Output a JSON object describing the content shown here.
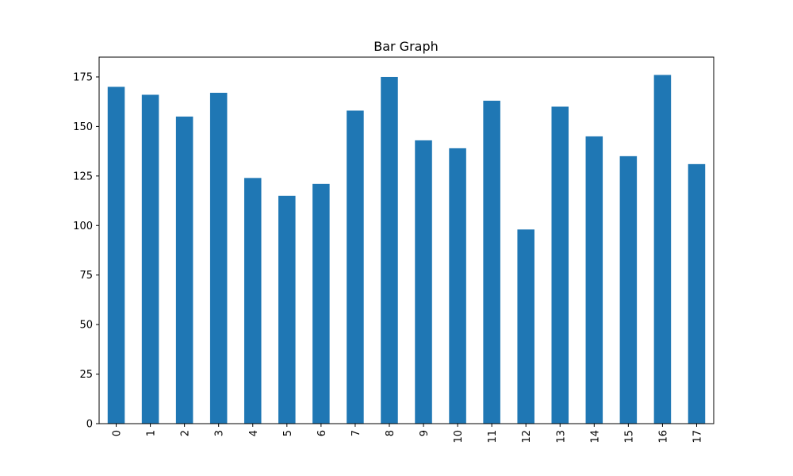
{
  "chart_data": {
    "type": "bar",
    "title": "Bar Graph",
    "xlabel": "",
    "ylabel": "",
    "categories": [
      "0",
      "1",
      "2",
      "3",
      "4",
      "5",
      "6",
      "7",
      "8",
      "9",
      "10",
      "11",
      "12",
      "13",
      "14",
      "15",
      "16",
      "17"
    ],
    "values": [
      170,
      166,
      155,
      167,
      124,
      115,
      121,
      158,
      175,
      143,
      139,
      163,
      98,
      160,
      145,
      135,
      176,
      131
    ],
    "ylim": [
      0,
      185
    ],
    "yticks": [
      "0",
      "25",
      "50",
      "75",
      "100",
      "125",
      "150",
      "175"
    ],
    "grid": false,
    "legend": "none",
    "bar_color": "#1f77b4",
    "x_tick_rotation": "vertical"
  }
}
